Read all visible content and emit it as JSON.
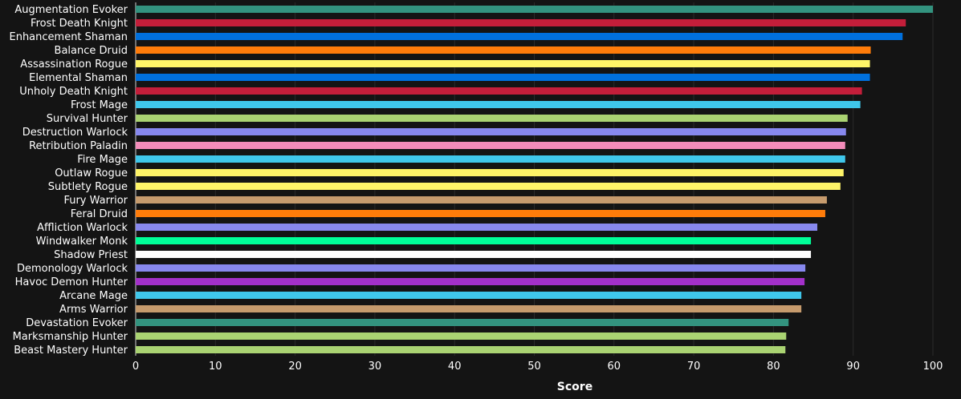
{
  "chart_data": {
    "type": "bar",
    "orientation": "horizontal",
    "xlabel": "Score",
    "xlim": [
      0,
      100
    ],
    "xticks": [
      0,
      10,
      20,
      30,
      40,
      50,
      60,
      70,
      80,
      90,
      100
    ],
    "grid": true,
    "categories": [
      "Augmentation Evoker",
      "Frost Death Knight",
      "Enhancement Shaman",
      "Balance Druid",
      "Assassination Rogue",
      "Elemental Shaman",
      "Unholy Death Knight",
      "Frost Mage",
      "Survival Hunter",
      "Destruction Warlock",
      "Retribution Paladin",
      "Fire Mage",
      "Outlaw Rogue",
      "Subtlety Rogue",
      "Fury Warrior",
      "Feral Druid",
      "Affliction Warlock",
      "Windwalker Monk",
      "Shadow Priest",
      "Demonology Warlock",
      "Havoc Demon Hunter",
      "Arcane Mage",
      "Arms Warrior",
      "Devastation Evoker",
      "Marksmanship Hunter",
      "Beast Mastery Hunter"
    ],
    "values": [
      100,
      96.6,
      96.2,
      92.2,
      92.1,
      92.1,
      91.1,
      90.9,
      89.3,
      89.1,
      89.0,
      89.0,
      88.8,
      88.4,
      86.7,
      86.5,
      85.5,
      84.7,
      84.7,
      84.0,
      83.9,
      83.5,
      83.5,
      81.9,
      81.6,
      81.5
    ],
    "colors": [
      "#33937f",
      "#c41e3a",
      "#0070dd",
      "#ff7c0a",
      "#fff468",
      "#0070dd",
      "#c41e3a",
      "#3fc7eb",
      "#aad372",
      "#8788ee",
      "#f48cba",
      "#3fc7eb",
      "#fff468",
      "#fff468",
      "#c69b6d",
      "#ff7c0a",
      "#8788ee",
      "#00ff98",
      "#ffffff",
      "#8788ee",
      "#a330c9",
      "#3fc7eb",
      "#c69b6d",
      "#33937f",
      "#aad372",
      "#aad372"
    ]
  }
}
